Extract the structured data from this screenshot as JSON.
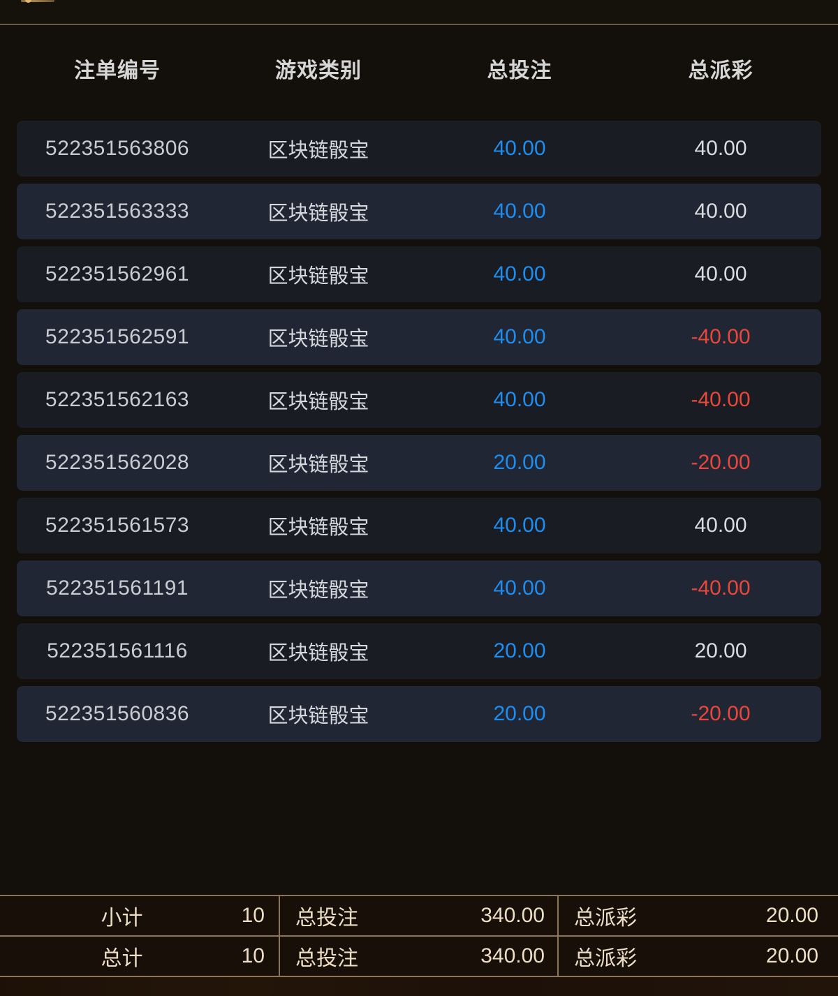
{
  "colors": {
    "accent_gold": "#c9a25a",
    "top_separator": "#6b5a40",
    "bet_blue": "#1d8ef0",
    "payout_negative_red": "#e8473a",
    "footer_border": "#8a7656",
    "footer_text": "#ecdfc5",
    "row_dark": "#191c22",
    "row_light": "#212634"
  },
  "header": {
    "columns": [
      "注单编号",
      "游戏类别",
      "总投注",
      "总派彩"
    ]
  },
  "table": {
    "rows": [
      {
        "bet_id": "522351563806",
        "game": "区块链骰宝",
        "total_bet": "40.00",
        "total_payout": "40.00"
      },
      {
        "bet_id": "522351563333",
        "game": "区块链骰宝",
        "total_bet": "40.00",
        "total_payout": "40.00"
      },
      {
        "bet_id": "522351562961",
        "game": "区块链骰宝",
        "total_bet": "40.00",
        "total_payout": "40.00"
      },
      {
        "bet_id": "522351562591",
        "game": "区块链骰宝",
        "total_bet": "40.00",
        "total_payout": "-40.00"
      },
      {
        "bet_id": "522351562163",
        "game": "区块链骰宝",
        "total_bet": "40.00",
        "total_payout": "-40.00"
      },
      {
        "bet_id": "522351562028",
        "game": "区块链骰宝",
        "total_bet": "20.00",
        "total_payout": "-20.00"
      },
      {
        "bet_id": "522351561573",
        "game": "区块链骰宝",
        "total_bet": "40.00",
        "total_payout": "40.00"
      },
      {
        "bet_id": "522351561191",
        "game": "区块链骰宝",
        "total_bet": "40.00",
        "total_payout": "-40.00"
      },
      {
        "bet_id": "522351561116",
        "game": "区块链骰宝",
        "total_bet": "20.00",
        "total_payout": "20.00"
      },
      {
        "bet_id": "522351560836",
        "game": "区块链骰宝",
        "total_bet": "20.00",
        "total_payout": "-20.00"
      }
    ]
  },
  "summary": {
    "subtotal": {
      "label": "小计",
      "count": "10",
      "bet_label": "总投注",
      "bet_value": "340.00",
      "payout_label": "总派彩",
      "payout_value": "20.00"
    },
    "total": {
      "label": "总计",
      "count": "10",
      "bet_label": "总投注",
      "bet_value": "340.00",
      "payout_label": "总派彩",
      "payout_value": "20.00"
    }
  }
}
